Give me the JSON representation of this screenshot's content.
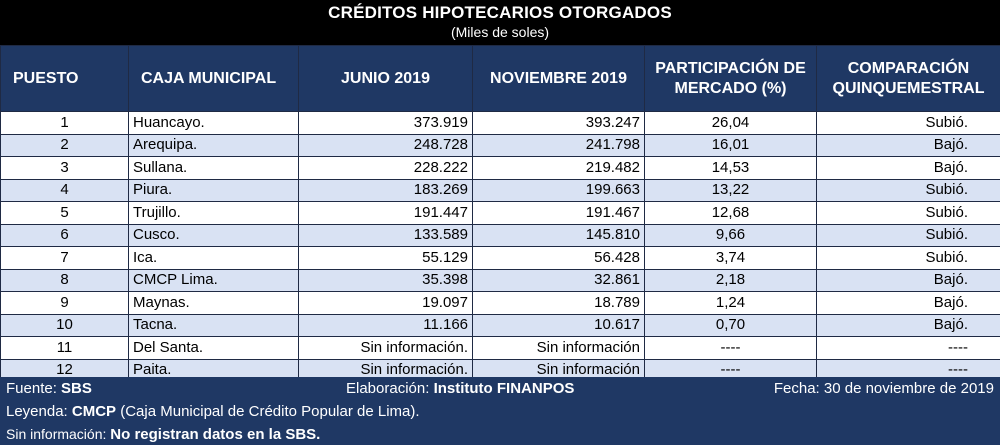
{
  "title": "CRÉDITOS HIPOTECARIOS OTORGADOS",
  "subtitle": "(Miles de soles)",
  "headers": {
    "rank": "PUESTO",
    "entity": "CAJA MUNICIPAL",
    "june": "JUNIO 2019",
    "november": "NOVIEMBRE 2019",
    "share_line1": "PARTICIPACIÓN DE",
    "share_line2": "MERCADO (%)",
    "comparison_line1": "COMPARACIÓN",
    "comparison_line2": "QUINQUEMESTRAL"
  },
  "rows": [
    {
      "rank": "1",
      "entity": "Huancayo.",
      "june": "373.919",
      "november": "393.247",
      "share": "26,04",
      "comparison": "Subió."
    },
    {
      "rank": "2",
      "entity": "Arequipa.",
      "june": "248.728",
      "november": "241.798",
      "share": "16,01",
      "comparison": "Bajó."
    },
    {
      "rank": "3",
      "entity": "Sullana.",
      "june": "228.222",
      "november": "219.482",
      "share": "14,53",
      "comparison": "Bajó."
    },
    {
      "rank": "4",
      "entity": "Piura.",
      "june": "183.269",
      "november": "199.663",
      "share": "13,22",
      "comparison": "Subió."
    },
    {
      "rank": "5",
      "entity": "Trujillo.",
      "june": "191.447",
      "november": "191.467",
      "share": "12,68",
      "comparison": "Subió."
    },
    {
      "rank": "6",
      "entity": "Cusco.",
      "june": "133.589",
      "november": "145.810",
      "share": "9,66",
      "comparison": "Subió."
    },
    {
      "rank": "7",
      "entity": "Ica.",
      "june": "55.129",
      "november": "56.428",
      "share": "3,74",
      "comparison": "Subió."
    },
    {
      "rank": "8",
      "entity": "CMCP Lima.",
      "june": "35.398",
      "november": "32.861",
      "share": "2,18",
      "comparison": "Bajó."
    },
    {
      "rank": "9",
      "entity": "Maynas.",
      "june": "19.097",
      "november": "18.789",
      "share": "1,24",
      "comparison": "Bajó."
    },
    {
      "rank": "10",
      "entity": "Tacna.",
      "june": "11.166",
      "november": "10.617",
      "share": "0,70",
      "comparison": "Bajó."
    },
    {
      "rank": "11",
      "entity": "Del Santa.",
      "june": "Sin información.",
      "november": "Sin información",
      "share": "----",
      "comparison": "----"
    },
    {
      "rank": "12",
      "entity": "Paita.",
      "june": "Sin información.",
      "november": "Sin información",
      "share": "----",
      "comparison": "----"
    }
  ],
  "footer": {
    "source_label": "Fuente: ",
    "source_value": "SBS",
    "made_by_label": "Elaboración: ",
    "made_by_value": "Instituto FINANPOS",
    "date": "Fecha: 30 de noviembre de 2019",
    "legend_label": "Leyenda: ",
    "legend_abbr": "CMCP",
    "legend_text": " (Caja Municipal de Crédito Popular de Lima).",
    "noinfo_label": "Sin información: ",
    "noinfo_text": "No registran datos en la SBS."
  }
}
